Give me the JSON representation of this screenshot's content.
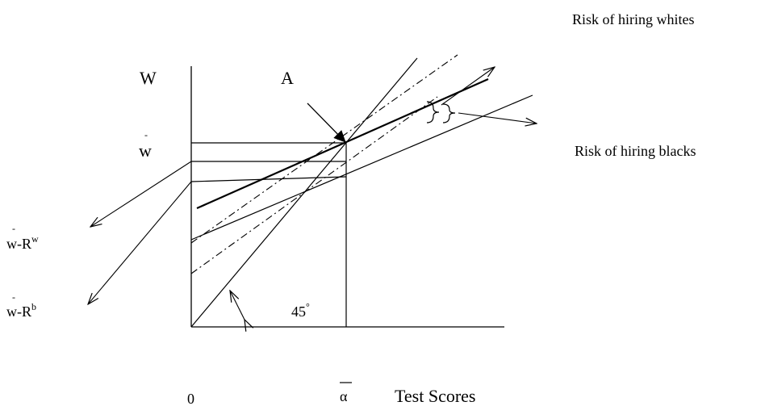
{
  "labels": {
    "y_axis": "W",
    "point_a": "A",
    "wbar": "w",
    "w_minus_rw": "w-R",
    "rw_sup": "w",
    "w_minus_rb": "w-R",
    "rb_sup": "b",
    "angle": "45",
    "degree_mark": "°",
    "origin": "0",
    "alpha_bar": "α",
    "x_axis": "Test Scores",
    "risk_whites": "Risk of hiring whites",
    "risk_blacks": "Risk of hiring blacks",
    "bar_mark": "-"
  }
}
